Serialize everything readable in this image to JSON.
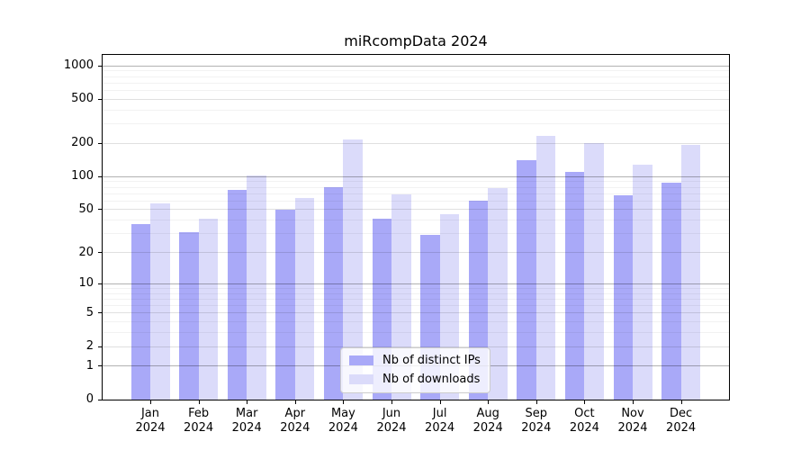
{
  "title": "miRcompData 2024",
  "legend": {
    "position": "lower center",
    "items": [
      {
        "label": "Nb of distinct IPs",
        "color": "#a9a9f8"
      },
      {
        "label": "Nb of downloads",
        "color": "#dbdbfa"
      }
    ]
  },
  "chart_data": {
    "type": "bar",
    "title": "miRcompData 2024",
    "xlabel": "",
    "ylabel": "",
    "y_scale": "log10(1+x)",
    "y_ticks": [
      0,
      1,
      2,
      5,
      10,
      20,
      50,
      100,
      200,
      500,
      1000
    ],
    "ylim": [
      0,
      1250
    ],
    "grid": "horizontal major+minor, drawn over bars",
    "categories": [
      {
        "month": "Jan",
        "year": "2024"
      },
      {
        "month": "Feb",
        "year": "2024"
      },
      {
        "month": "Mar",
        "year": "2024"
      },
      {
        "month": "Apr",
        "year": "2024"
      },
      {
        "month": "May",
        "year": "2024"
      },
      {
        "month": "Jun",
        "year": "2024"
      },
      {
        "month": "Jul",
        "year": "2024"
      },
      {
        "month": "Aug",
        "year": "2024"
      },
      {
        "month": "Sep",
        "year": "2024"
      },
      {
        "month": "Oct",
        "year": "2024"
      },
      {
        "month": "Nov",
        "year": "2024"
      },
      {
        "month": "Dec",
        "year": "2024"
      }
    ],
    "series": [
      {
        "name": "Nb of distinct IPs",
        "color": "#a9a9f8",
        "values": [
          37,
          31,
          75,
          50,
          80,
          41,
          29,
          60,
          140,
          110,
          68,
          88
        ]
      },
      {
        "name": "Nb of downloads",
        "color": "#dbdbfa",
        "values": [
          57,
          41,
          102,
          64,
          218,
          69,
          45,
          79,
          232,
          200,
          128,
          193
        ]
      }
    ]
  }
}
